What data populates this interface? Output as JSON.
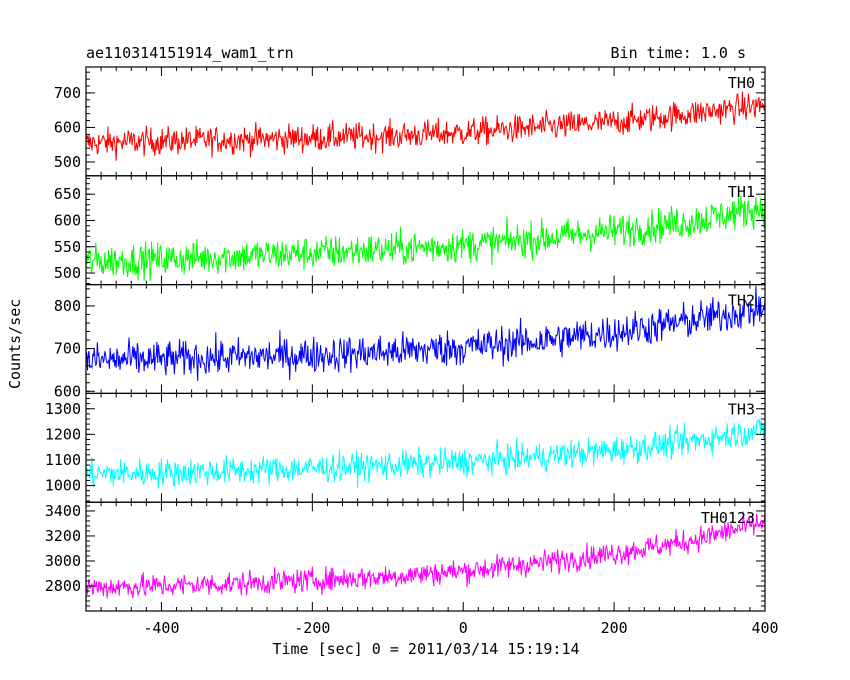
{
  "header": {
    "title": "ae110314151914_wam1_trn",
    "bin_time": "Bin time: 1.0 s"
  },
  "chart_data": {
    "type": "line",
    "xlabel": "Time [sec] 0 = 2011/03/14 15:19:14",
    "ylabel": "Counts/sec",
    "x_range": [
      -500,
      400
    ],
    "x_ticks": [
      -400,
      -200,
      0,
      200,
      400
    ],
    "panels": [
      {
        "name": "TH0",
        "color": "#ff0000",
        "ylim": [
          460,
          775
        ],
        "y_ticks": [
          500,
          600,
          700
        ],
        "x": [
          -500,
          -400,
          -300,
          -200,
          -100,
          0,
          100,
          200,
          300,
          400
        ],
        "values": [
          555,
          560,
          565,
          570,
          575,
          585,
          600,
          615,
          640,
          665
        ],
        "noise": 40
      },
      {
        "name": "TH1",
        "color": "#00ff00",
        "ylim": [
          478,
          685
        ],
        "y_ticks": [
          500,
          550,
          600,
          650
        ],
        "x": [
          -500,
          -400,
          -300,
          -200,
          -100,
          0,
          100,
          200,
          300,
          400
        ],
        "values": [
          522,
          526,
          532,
          538,
          545,
          553,
          565,
          580,
          598,
          625
        ],
        "noise": 32
      },
      {
        "name": "TH2",
        "color": "#0000ff",
        "ylim": [
          595,
          850
        ],
        "y_ticks": [
          600,
          700,
          800
        ],
        "x": [
          -500,
          -400,
          -300,
          -200,
          -100,
          0,
          100,
          200,
          300,
          400
        ],
        "values": [
          672,
          675,
          680,
          685,
          692,
          703,
          718,
          738,
          765,
          795
        ],
        "noise": 42
      },
      {
        "name": "TH3",
        "color": "#00ffff",
        "ylim": [
          935,
          1360
        ],
        "y_ticks": [
          1000,
          1100,
          1200,
          1300
        ],
        "x": [
          -500,
          -400,
          -300,
          -200,
          -100,
          0,
          100,
          200,
          300,
          400
        ],
        "values": [
          1045,
          1050,
          1058,
          1067,
          1078,
          1092,
          1112,
          1138,
          1172,
          1220
        ],
        "noise": 55
      },
      {
        "name": "TH0123",
        "color": "#ff00ff",
        "ylim": [
          2600,
          3470
        ],
        "y_ticks": [
          2800,
          3000,
          3200,
          3400
        ],
        "x": [
          -500,
          -400,
          -300,
          -200,
          -100,
          0,
          100,
          200,
          300,
          400
        ],
        "values": [
          2790,
          2800,
          2820,
          2845,
          2875,
          2920,
          2985,
          3060,
          3160,
          3310
        ],
        "noise": 95
      }
    ]
  }
}
